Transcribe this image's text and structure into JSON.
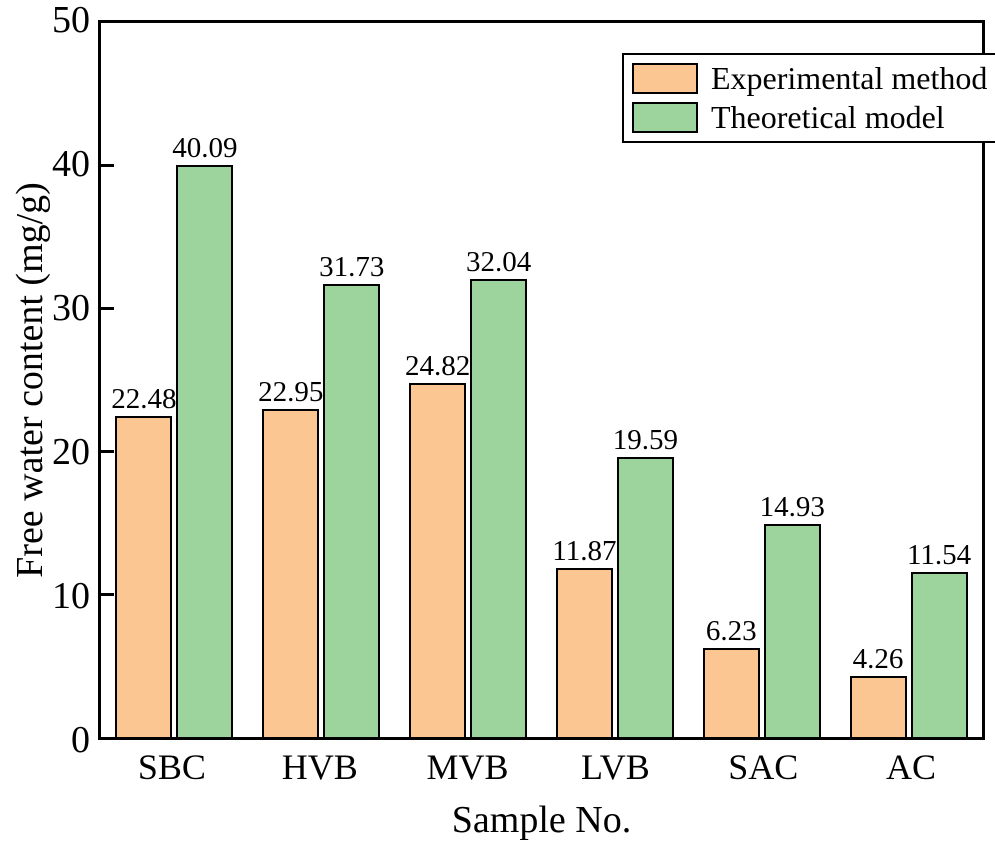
{
  "chart_data": {
    "type": "bar",
    "categories": [
      "SBC",
      "HVB",
      "MVB",
      "LVB",
      "SAC",
      "AC"
    ],
    "series": [
      {
        "name": "Experimental method",
        "color": "#FCC693",
        "values": [
          22.48,
          22.95,
          24.82,
          11.87,
          6.23,
          4.26
        ]
      },
      {
        "name": "Theoretical model",
        "color": "#9DD49E",
        "values": [
          40.09,
          31.73,
          32.04,
          19.59,
          14.93,
          11.54
        ]
      }
    ],
    "title": "",
    "xlabel": "Sample No.",
    "ylabel": "Free water content (mg/g)",
    "ylim": [
      0,
      50
    ],
    "yticks": [
      0,
      10,
      20,
      30,
      40,
      50
    ],
    "grid": false,
    "legend_position": "top-right",
    "value_labels_decimals": 2,
    "bar_border_color": "#000000",
    "frame_color": "#000000",
    "background_color": "#FFFFFF"
  }
}
